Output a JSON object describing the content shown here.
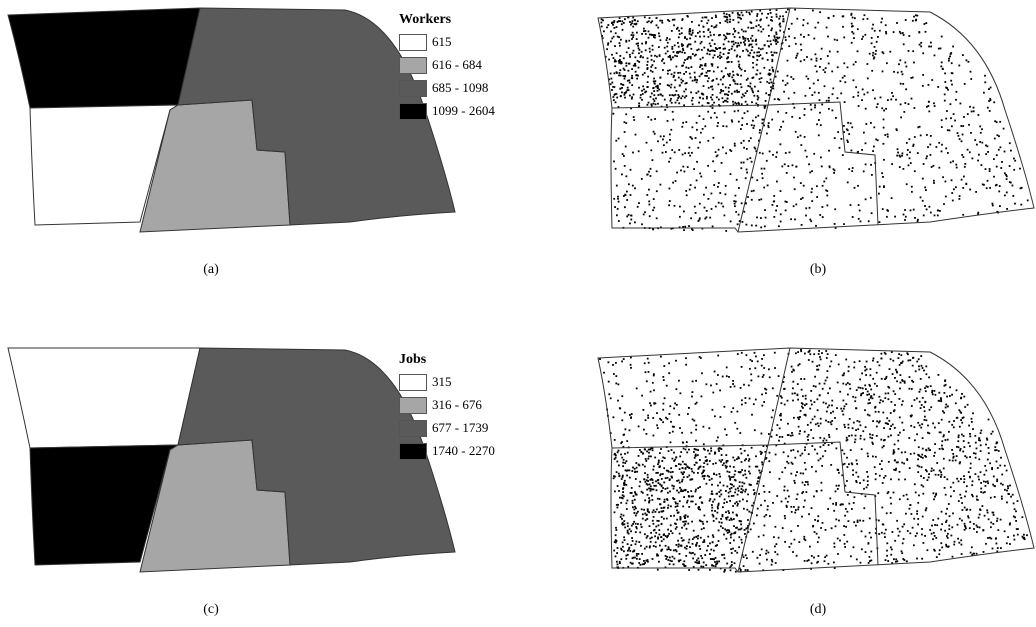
{
  "colors": {
    "class1": "#ffffff",
    "class2": "#a6a6a6",
    "class3": "#5a5a5a",
    "class4": "#000000",
    "outline": "#333333",
    "dot": "#000000"
  },
  "panels": {
    "a": {
      "caption": "(a)",
      "legend": {
        "title": "Workers",
        "items": [
          {
            "label": "615",
            "color": "#ffffff"
          },
          {
            "label": "616 - 684",
            "color": "#a6a6a6"
          },
          {
            "label": "685 - 1098",
            "color": "#5a5a5a"
          },
          {
            "label": "1099 - 2604",
            "color": "#000000"
          }
        ]
      },
      "zone_colors": {
        "northwest": "#000000",
        "southwest": "#ffffff",
        "south_central": "#a6a6a6",
        "east": "#5a5a5a"
      }
    },
    "b": {
      "caption": "(b)",
      "dot_density": {
        "northwest": 1.0,
        "southwest": 0.3,
        "south_central": 0.22,
        "east": 0.28
      }
    },
    "c": {
      "caption": "(c)",
      "legend": {
        "title": "Jobs",
        "items": [
          {
            "label": "315",
            "color": "#ffffff"
          },
          {
            "label": "316 - 676",
            "color": "#a6a6a6"
          },
          {
            "label": "677 - 1739",
            "color": "#5a5a5a"
          },
          {
            "label": "1740 - 2270",
            "color": "#000000"
          }
        ]
      },
      "zone_colors": {
        "northwest": "#ffffff",
        "southwest": "#000000",
        "south_central": "#a6a6a6",
        "east": "#5a5a5a"
      }
    },
    "d": {
      "caption": "(d)",
      "dot_density": {
        "northwest": 0.25,
        "southwest": 1.0,
        "south_central": 0.35,
        "east": 0.5
      }
    }
  }
}
